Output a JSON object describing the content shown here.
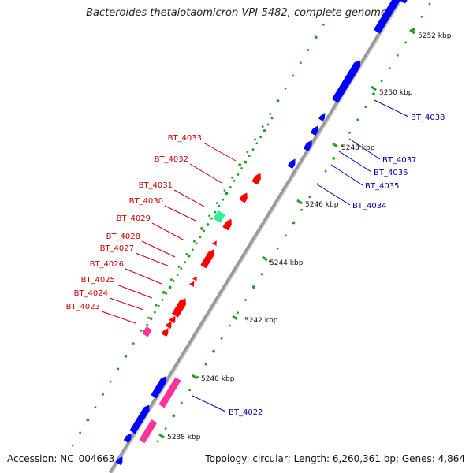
{
  "title": "Bacteroides thetaiotaomicron VPI-5482, complete genome",
  "accession": "Accession: NC_004663",
  "summary": "Topology: circular; Length: 6,260,361 bp; Genes: 4,864",
  "colors": {
    "forward": "#0000ff",
    "reverse": "#ff0000",
    "rna": "#ff3399",
    "other": "#33ee99",
    "gc_dot": "#2a9a2a",
    "backbone": "#999999",
    "label_forward": "#0000aa",
    "label_reverse": "#cc0000"
  },
  "kbp_marks": [
    "5238 kbp",
    "5240 kbp",
    "5242 kbp",
    "5244 kbp",
    "5246 kbp",
    "5248 kbp",
    "5250 kbp",
    "5252 kbp"
  ],
  "forward_labels": [
    "BT_4022",
    "BT_4034",
    "BT_4035",
    "BT_4036",
    "BT_4037",
    "BT_4038"
  ],
  "reverse_labels": [
    "BT_4023",
    "BT_4024",
    "BT_4025",
    "BT_4026",
    "BT_4027",
    "BT_4028",
    "BT_4029",
    "BT_4030",
    "BT_4031",
    "BT_4032",
    "BT_4033"
  ]
}
